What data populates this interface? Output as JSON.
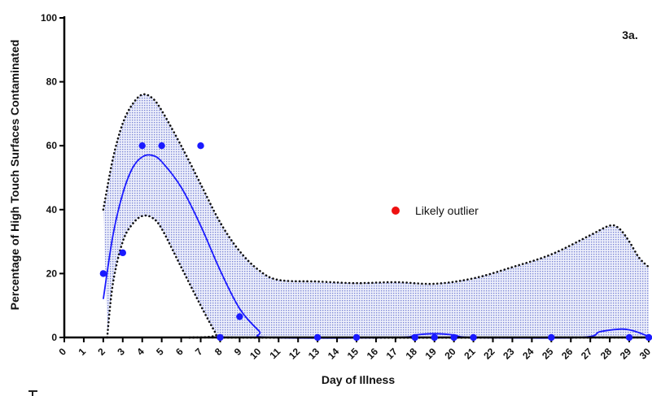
{
  "chart_data": {
    "type": "scatter",
    "panel_label": "3a.",
    "xlabel": "Day of Illness",
    "ylabel": "Percentage of High Touch Surfaces Contaminated",
    "xlim": [
      0,
      30
    ],
    "ylim": [
      0,
      100
    ],
    "x_ticks": [
      "0",
      "1",
      "2",
      "3",
      "4",
      "5",
      "6",
      "7",
      "8",
      "9",
      "10",
      "11",
      "12",
      "13",
      "14",
      "15",
      "16",
      "17",
      "18",
      "19",
      "20",
      "21",
      "22",
      "23",
      "24",
      "25",
      "26",
      "27",
      "28",
      "29",
      "30"
    ],
    "y_ticks": [
      "0",
      "20",
      "40",
      "60",
      "80",
      "100"
    ],
    "grid": false,
    "legend": {
      "position": "center-right",
      "entries": [
        {
          "label": "Likely outlier",
          "color": "#ee1111"
        }
      ]
    },
    "colors": {
      "points": "#1a1aff",
      "fit": "#1a1aff",
      "band_fill": "#d9def5",
      "band_border": "#111111"
    },
    "points": [
      {
        "x": 2,
        "y": 20
      },
      {
        "x": 3,
        "y": 26.5
      },
      {
        "x": 4,
        "y": 60
      },
      {
        "x": 5,
        "y": 60
      },
      {
        "x": 7,
        "y": 60
      },
      {
        "x": 8,
        "y": 0
      },
      {
        "x": 9,
        "y": 6.5
      },
      {
        "x": 13,
        "y": 0
      },
      {
        "x": 15,
        "y": 0
      },
      {
        "x": 18,
        "y": 0
      },
      {
        "x": 19,
        "y": 0
      },
      {
        "x": 20,
        "y": 0
      },
      {
        "x": 21,
        "y": 0
      },
      {
        "x": 25,
        "y": 0
      },
      {
        "x": 29,
        "y": 0
      },
      {
        "x": 30,
        "y": 0
      }
    ],
    "fit_curve": [
      {
        "x": 2,
        "y": 12
      },
      {
        "x": 2.5,
        "y": 32
      },
      {
        "x": 3,
        "y": 45
      },
      {
        "x": 3.5,
        "y": 53
      },
      {
        "x": 4,
        "y": 56.5
      },
      {
        "x": 4.5,
        "y": 57
      },
      {
        "x": 5,
        "y": 55
      },
      {
        "x": 6,
        "y": 47
      },
      {
        "x": 7,
        "y": 35
      },
      {
        "x": 8,
        "y": 21
      },
      {
        "x": 9,
        "y": 9
      },
      {
        "x": 10,
        "y": 2
      },
      {
        "x": 10.5,
        "y": 0
      },
      {
        "x": 17,
        "y": 0
      },
      {
        "x": 18,
        "y": 0.8
      },
      {
        "x": 19,
        "y": 1.2
      },
      {
        "x": 20,
        "y": 0.8
      },
      {
        "x": 21,
        "y": 0
      },
      {
        "x": 26.5,
        "y": 0
      },
      {
        "x": 27.5,
        "y": 1.8
      },
      {
        "x": 28.5,
        "y": 2.6
      },
      {
        "x": 29,
        "y": 2.4
      },
      {
        "x": 29.5,
        "y": 1.5
      },
      {
        "x": 30,
        "y": 0.3
      }
    ],
    "band_upper": [
      {
        "x": 2,
        "y": 40
      },
      {
        "x": 2.5,
        "y": 56
      },
      {
        "x": 3,
        "y": 67
      },
      {
        "x": 3.5,
        "y": 73
      },
      {
        "x": 4,
        "y": 76
      },
      {
        "x": 4.5,
        "y": 75
      },
      {
        "x": 5,
        "y": 71
      },
      {
        "x": 6,
        "y": 60
      },
      {
        "x": 7,
        "y": 48
      },
      {
        "x": 8,
        "y": 36
      },
      {
        "x": 9,
        "y": 27
      },
      {
        "x": 10,
        "y": 21
      },
      {
        "x": 11,
        "y": 18
      },
      {
        "x": 13,
        "y": 17.5
      },
      {
        "x": 15,
        "y": 17
      },
      {
        "x": 17,
        "y": 17.3
      },
      {
        "x": 19,
        "y": 16.8
      },
      {
        "x": 21,
        "y": 18.5
      },
      {
        "x": 23,
        "y": 22
      },
      {
        "x": 25,
        "y": 26
      },
      {
        "x": 27,
        "y": 32
      },
      {
        "x": 28,
        "y": 35
      },
      {
        "x": 28.5,
        "y": 34
      },
      {
        "x": 29,
        "y": 30
      },
      {
        "x": 29.5,
        "y": 25
      },
      {
        "x": 30,
        "y": 22
      }
    ],
    "band_lower": [
      {
        "x": 2.2,
        "y": 0
      },
      {
        "x": 2.5,
        "y": 17
      },
      {
        "x": 3,
        "y": 30
      },
      {
        "x": 3.5,
        "y": 35.5
      },
      {
        "x": 4,
        "y": 38
      },
      {
        "x": 4.5,
        "y": 37.5
      },
      {
        "x": 5,
        "y": 34
      },
      {
        "x": 6,
        "y": 22
      },
      {
        "x": 7,
        "y": 10
      },
      {
        "x": 7.8,
        "y": 1
      },
      {
        "x": 8,
        "y": 0
      },
      {
        "x": 30,
        "y": 0
      }
    ]
  }
}
